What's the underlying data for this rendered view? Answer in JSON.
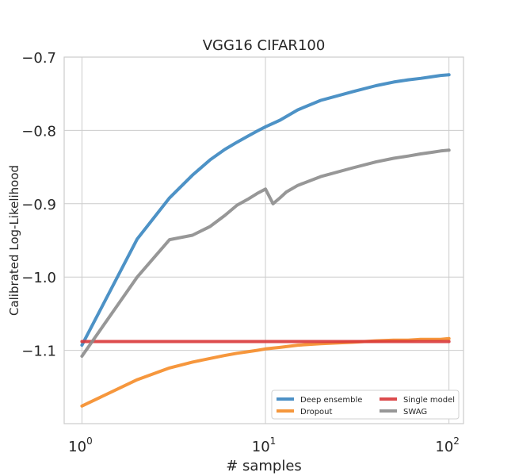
{
  "chart_data": {
    "type": "line",
    "title": "VGG16 CIFAR100",
    "xlabel": "# samples",
    "ylabel": "Calibrated Log-Likelihood",
    "xscale": "log",
    "xlim": [
      0.8,
      120
    ],
    "ylim": [
      -1.2,
      -0.7
    ],
    "xticks": [
      {
        "value": 1,
        "base": "10",
        "exp": "0"
      },
      {
        "value": 10,
        "base": "10",
        "exp": "1"
      },
      {
        "value": 100,
        "base": "10",
        "exp": "2"
      }
    ],
    "yticks": [
      {
        "value": -0.7,
        "label": "−0.7"
      },
      {
        "value": -0.8,
        "label": "−0.8"
      },
      {
        "value": -0.9,
        "label": "−0.9"
      },
      {
        "value": -1.0,
        "label": "−1.0"
      },
      {
        "value": -1.1,
        "label": "−1.1"
      }
    ],
    "grid": true,
    "legend_position": "lower-right",
    "legend_columns": 2,
    "series": [
      {
        "name": "Deep ensemble",
        "color": "#3a86c0",
        "x": [
          1,
          2,
          3,
          4,
          5,
          6,
          7,
          8,
          9,
          10,
          12,
          15,
          20,
          30,
          40,
          50,
          60,
          70,
          80,
          90,
          100
        ],
        "y": [
          -1.093,
          -0.948,
          -0.892,
          -0.861,
          -0.84,
          -0.826,
          -0.816,
          -0.808,
          -0.801,
          -0.795,
          -0.786,
          -0.772,
          -0.759,
          -0.747,
          -0.739,
          -0.734,
          -0.731,
          -0.729,
          -0.727,
          -0.725,
          -0.724
        ]
      },
      {
        "name": "Dropout",
        "color": "#f58c28",
        "x": [
          1,
          2,
          3,
          4,
          5,
          6,
          7,
          8,
          9,
          10,
          12,
          15,
          20,
          30,
          40,
          50,
          60,
          70,
          80,
          90,
          100
        ],
        "y": [
          -1.176,
          -1.14,
          -1.124,
          -1.116,
          -1.111,
          -1.107,
          -1.104,
          -1.102,
          -1.1,
          -1.098,
          -1.096,
          -1.093,
          -1.091,
          -1.089,
          -1.087,
          -1.086,
          -1.086,
          -1.085,
          -1.085,
          -1.085,
          -1.084
        ]
      },
      {
        "name": "Single model",
        "color": "#d9383a",
        "x": [
          1,
          100
        ],
        "y": [
          -1.088,
          -1.088
        ]
      },
      {
        "name": "SWAG",
        "color": "#8c8c8c",
        "x": [
          1,
          2,
          3,
          4,
          5,
          6,
          7,
          8,
          9,
          10,
          11,
          12,
          13,
          15,
          20,
          30,
          40,
          50,
          60,
          70,
          80,
          90,
          100
        ],
        "y": [
          -1.108,
          -1.0,
          -0.949,
          -0.943,
          -0.931,
          -0.916,
          -0.902,
          -0.894,
          -0.886,
          -0.88,
          -0.9,
          -0.892,
          -0.884,
          -0.875,
          -0.863,
          -0.851,
          -0.843,
          -0.838,
          -0.835,
          -0.832,
          -0.83,
          -0.828,
          -0.827
        ]
      }
    ]
  }
}
